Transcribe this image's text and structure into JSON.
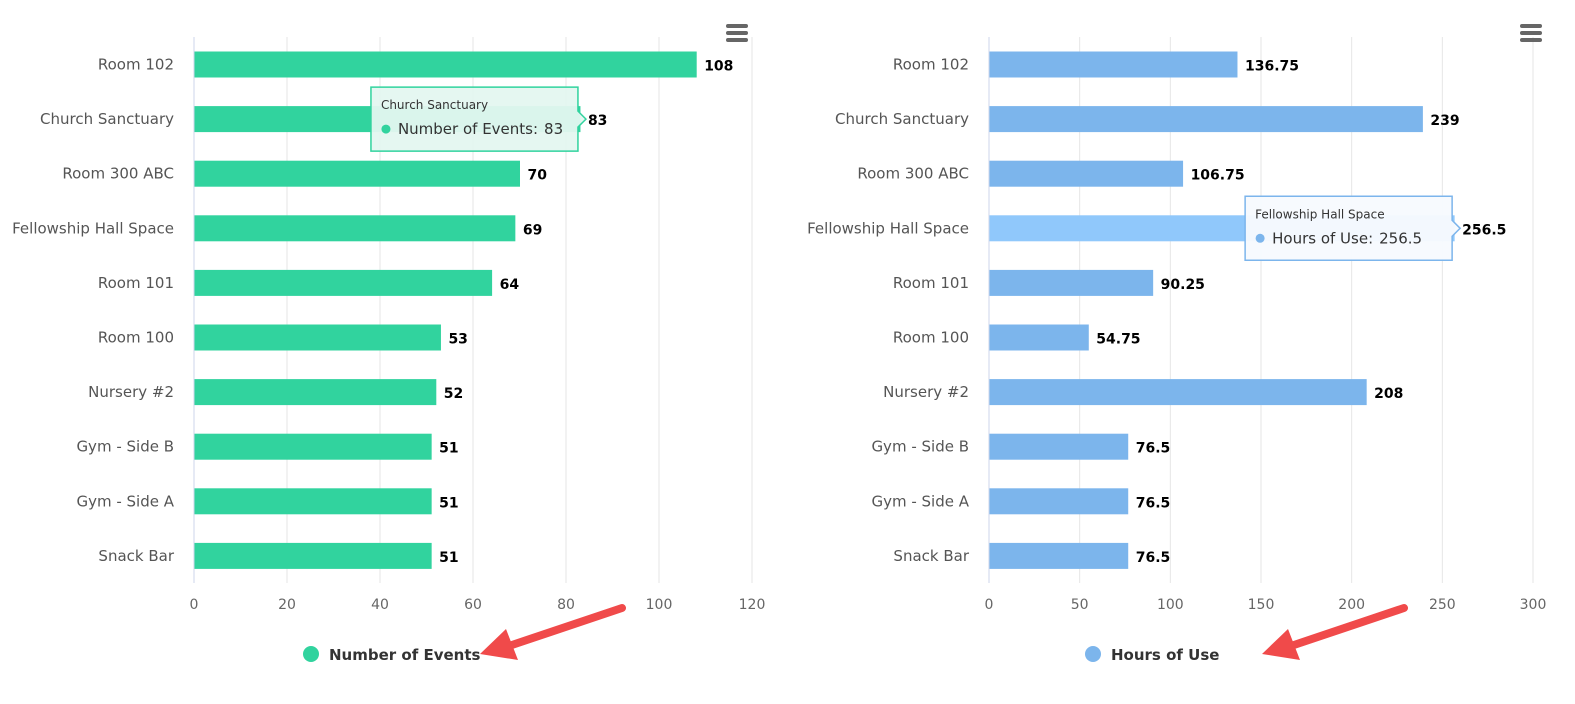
{
  "chart_data": [
    {
      "type": "bar",
      "orientation": "horizontal",
      "categories": [
        "Room 102",
        "Church Sanctuary",
        "Room 300 ABC",
        "Fellowship Hall Space",
        "Room 101",
        "Room 100",
        "Nursery #2",
        "Gym - Side B",
        "Gym - Side A",
        "Snack Bar"
      ],
      "series": [
        {
          "name": "Number of Events",
          "values": [
            108,
            83,
            70,
            69,
            64,
            53,
            52,
            51,
            51,
            51
          ],
          "color": "#31d39e"
        }
      ],
      "value_labels": [
        "108",
        "83",
        "70",
        "69",
        "64",
        "53",
        "52",
        "51",
        "51",
        "51"
      ],
      "ticks": [
        "0",
        "20",
        "40",
        "60",
        "80",
        "100",
        "120"
      ],
      "xlim": [
        0,
        120
      ],
      "grid": true,
      "legend": "bottom-center",
      "legend_label": "Number of Events",
      "tooltip": {
        "category_index": 1,
        "title": "Church Sanctuary",
        "label": "Number of Events:",
        "value": "83"
      },
      "menu_icon": "hamburger-menu-icon"
    },
    {
      "type": "bar",
      "orientation": "horizontal",
      "categories": [
        "Room 102",
        "Church Sanctuary",
        "Room 300 ABC",
        "Fellowship Hall Space",
        "Room 101",
        "Room 100",
        "Nursery #2",
        "Gym - Side B",
        "Gym - Side A",
        "Snack Bar"
      ],
      "series": [
        {
          "name": "Hours of Use",
          "values": [
            136.75,
            239,
            106.75,
            256.5,
            90.25,
            54.75,
            208,
            76.5,
            76.5,
            76.5
          ],
          "color": "#7cb5ec",
          "hover_color": "#90c8fb"
        }
      ],
      "value_labels": [
        "136.75",
        "239",
        "106.75",
        "256.5",
        "90.25",
        "54.75",
        "208",
        "76.5",
        "76.5",
        "76.5"
      ],
      "ticks": [
        "0",
        "50",
        "100",
        "150",
        "200",
        "250",
        "300"
      ],
      "xlim": [
        0,
        300
      ],
      "grid": true,
      "legend": "bottom-center",
      "legend_label": "Hours of Use",
      "tooltip": {
        "category_index": 3,
        "title": "Fellowship Hall Space",
        "label": "Hours of Use:",
        "value": "256.5"
      },
      "menu_icon": "hamburger-menu-icon"
    }
  ],
  "annotations": {
    "arrow_color": "#f04a4a",
    "arrow_icon": "red-arrow-icon"
  }
}
